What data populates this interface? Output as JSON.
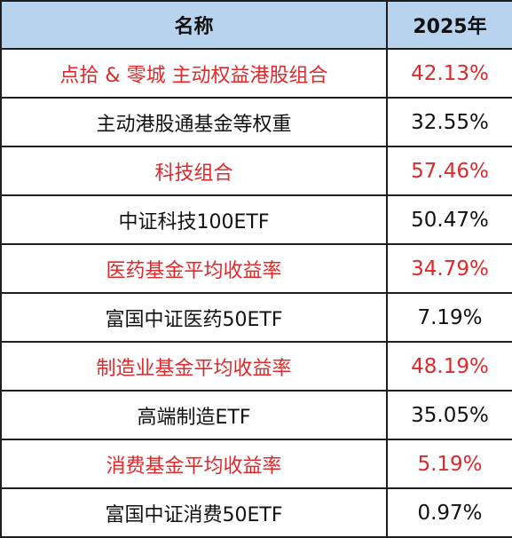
{
  "table": {
    "headers": {
      "name": "名称",
      "year": "2025年"
    },
    "rows": [
      {
        "name": "点拾 & 零城 主动权益港股组合",
        "value": "42.13%",
        "highlight": true
      },
      {
        "name": "主动港股通基金等权重",
        "value": "32.55%",
        "highlight": false
      },
      {
        "name": "科技组合",
        "value": "57.46%",
        "highlight": true
      },
      {
        "name": "中证科技100ETF",
        "value": "50.47%",
        "highlight": false
      },
      {
        "name": "医药基金平均收益率",
        "value": "34.79%",
        "highlight": true
      },
      {
        "name": "富国中证医药50ETF",
        "value": "7.19%",
        "highlight": false
      },
      {
        "name": "制造业基金平均收益率",
        "value": "48.19%",
        "highlight": true
      },
      {
        "name": "高端制造ETF",
        "value": "35.05%",
        "highlight": false
      },
      {
        "name": "消费基金平均收益率",
        "value": "5.19%",
        "highlight": true
      },
      {
        "name": "富国中证消费50ETF",
        "value": "0.97%",
        "highlight": false
      }
    ]
  },
  "colors": {
    "header_background": "#b7d3ee",
    "highlight_text": "#e0282a",
    "normal_text": "#111111",
    "border": "#1e1e1e"
  }
}
